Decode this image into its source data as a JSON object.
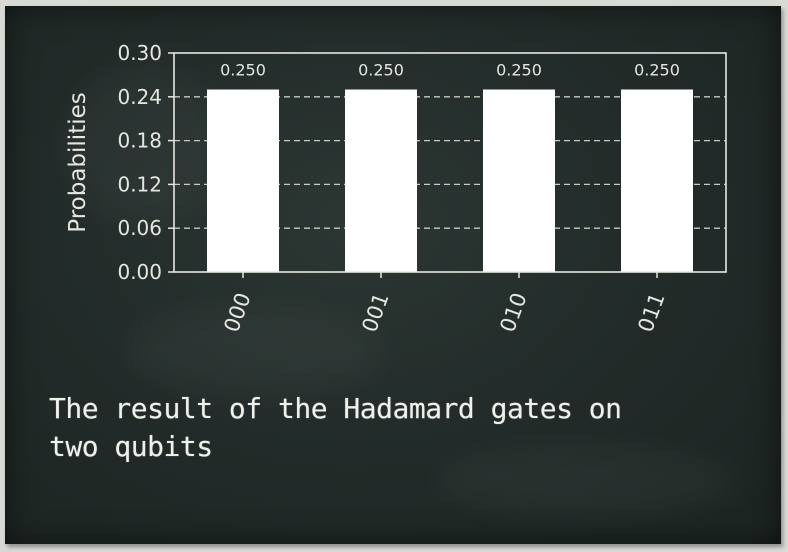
{
  "chart_data": {
    "type": "bar",
    "categories": [
      "000",
      "001",
      "010",
      "011"
    ],
    "values": [
      0.25,
      0.25,
      0.25,
      0.25
    ],
    "data_labels": [
      "0.250",
      "0.250",
      "0.250",
      "0.250"
    ],
    "ylabel": "Probabilities",
    "xlabel": "",
    "title": "",
    "ylim": [
      0,
      0.3
    ],
    "yticks": [
      0.0,
      0.06,
      0.12,
      0.18,
      0.24,
      0.3
    ],
    "ytick_labels": [
      "0.00",
      "0.06",
      "0.12",
      "0.18",
      "0.24",
      "0.30"
    ],
    "grid": "dashed-horizontal",
    "bar_color": "#ffffff",
    "axis_color": "#e6e6e0"
  },
  "caption": {
    "line1": "The result of the Hadamard gates on",
    "line2": "two qubits"
  }
}
